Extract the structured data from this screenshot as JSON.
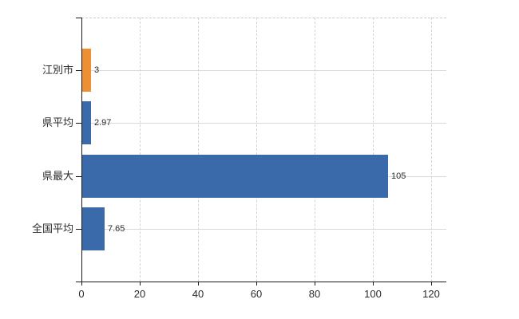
{
  "chart_data": {
    "type": "bar",
    "orientation": "horizontal",
    "title": "",
    "categories": [
      "江別市",
      "県平均",
      "県最大",
      "全国平均"
    ],
    "values": [
      3,
      2.97,
      105,
      7.65
    ],
    "value_labels": [
      "3",
      "2.97",
      "105",
      "7.65"
    ],
    "bar_colors": [
      "#ee8f33",
      "#3a6aa9",
      "#3a6aa9",
      "#3a6aa9"
    ],
    "xlabel": "",
    "ylabel": "",
    "xticks": [
      0,
      20,
      40,
      60,
      80,
      100,
      120
    ],
    "xlim": [
      0,
      125.2
    ],
    "grid": true,
    "legend": false,
    "colors": {
      "highlight_bar": "#ee8f33",
      "default_bar": "#3a6aa9",
      "axis": "#1a1a1a",
      "vertical_grid": "#d8d2d2",
      "horizontal_grid": "#d4ddd4",
      "top_border": "#c9c9c9",
      "text": "#2b2b2b",
      "background": "#ffffff"
    }
  }
}
